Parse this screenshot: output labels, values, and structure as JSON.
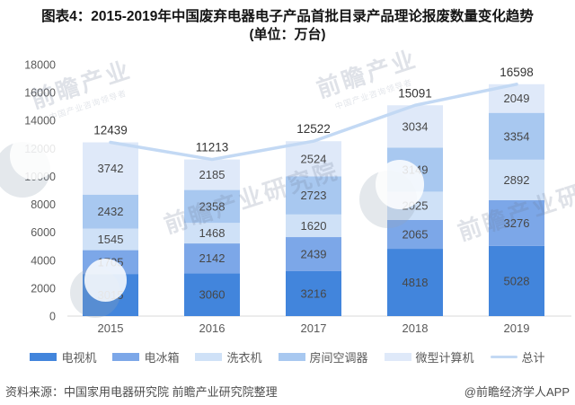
{
  "title": {
    "line1": "图表4：2015-2019年中国废弃电器电子产品首批目录产品理论报废数量变化趋势",
    "line2": "(单位：万台)"
  },
  "footer": {
    "source": "资料来源：中国家用电器研究院 前瞻产业研究院整理",
    "credit": "@前瞻经济学人APP"
  },
  "watermarks": {
    "brand_short": "前瞻产业",
    "brand_full": "前瞻产业研究院",
    "tagline": "中国产业咨询领导者"
  },
  "chart_data": {
    "type": "bar",
    "variant": "stacked-bars-with-total-line",
    "title": "2015-2019年中国废弃电器电子产品首批目录产品理论报废数量变化趋势",
    "unit": "万台",
    "categories": [
      "2015",
      "2016",
      "2017",
      "2018",
      "2019"
    ],
    "series": [
      {
        "name": "电视机",
        "color": "#4285DC",
        "values": [
          3015,
          3060,
          3216,
          4818,
          5028
        ]
      },
      {
        "name": "电冰箱",
        "color": "#7CA7E8",
        "values": [
          1705,
          2142,
          2439,
          2065,
          3276
        ]
      },
      {
        "name": "洗衣机",
        "color": "#CFE1F7",
        "values": [
          1545,
          1468,
          1620,
          2025,
          2892
        ]
      },
      {
        "name": "房间空调器",
        "color": "#A8C8F0",
        "values": [
          2432,
          2358,
          2723,
          3149,
          3354
        ]
      },
      {
        "name": "微型计算机",
        "color": "#DFE9F9",
        "values": [
          3742,
          2185,
          2524,
          3034,
          2049
        ]
      }
    ],
    "total_series": {
      "name": "总计",
      "type": "line",
      "color": "#C3D9F4",
      "values": [
        12439,
        11213,
        12522,
        15091,
        16598
      ]
    },
    "ylim": [
      0,
      18000
    ],
    "ytick_interval": 2000,
    "grid": false,
    "legend_position": "bottom",
    "axis_color": "#D9D9D9",
    "tick_label_color": "#595959",
    "segment_label_color": "#474747",
    "total_label_color": "#333333"
  }
}
